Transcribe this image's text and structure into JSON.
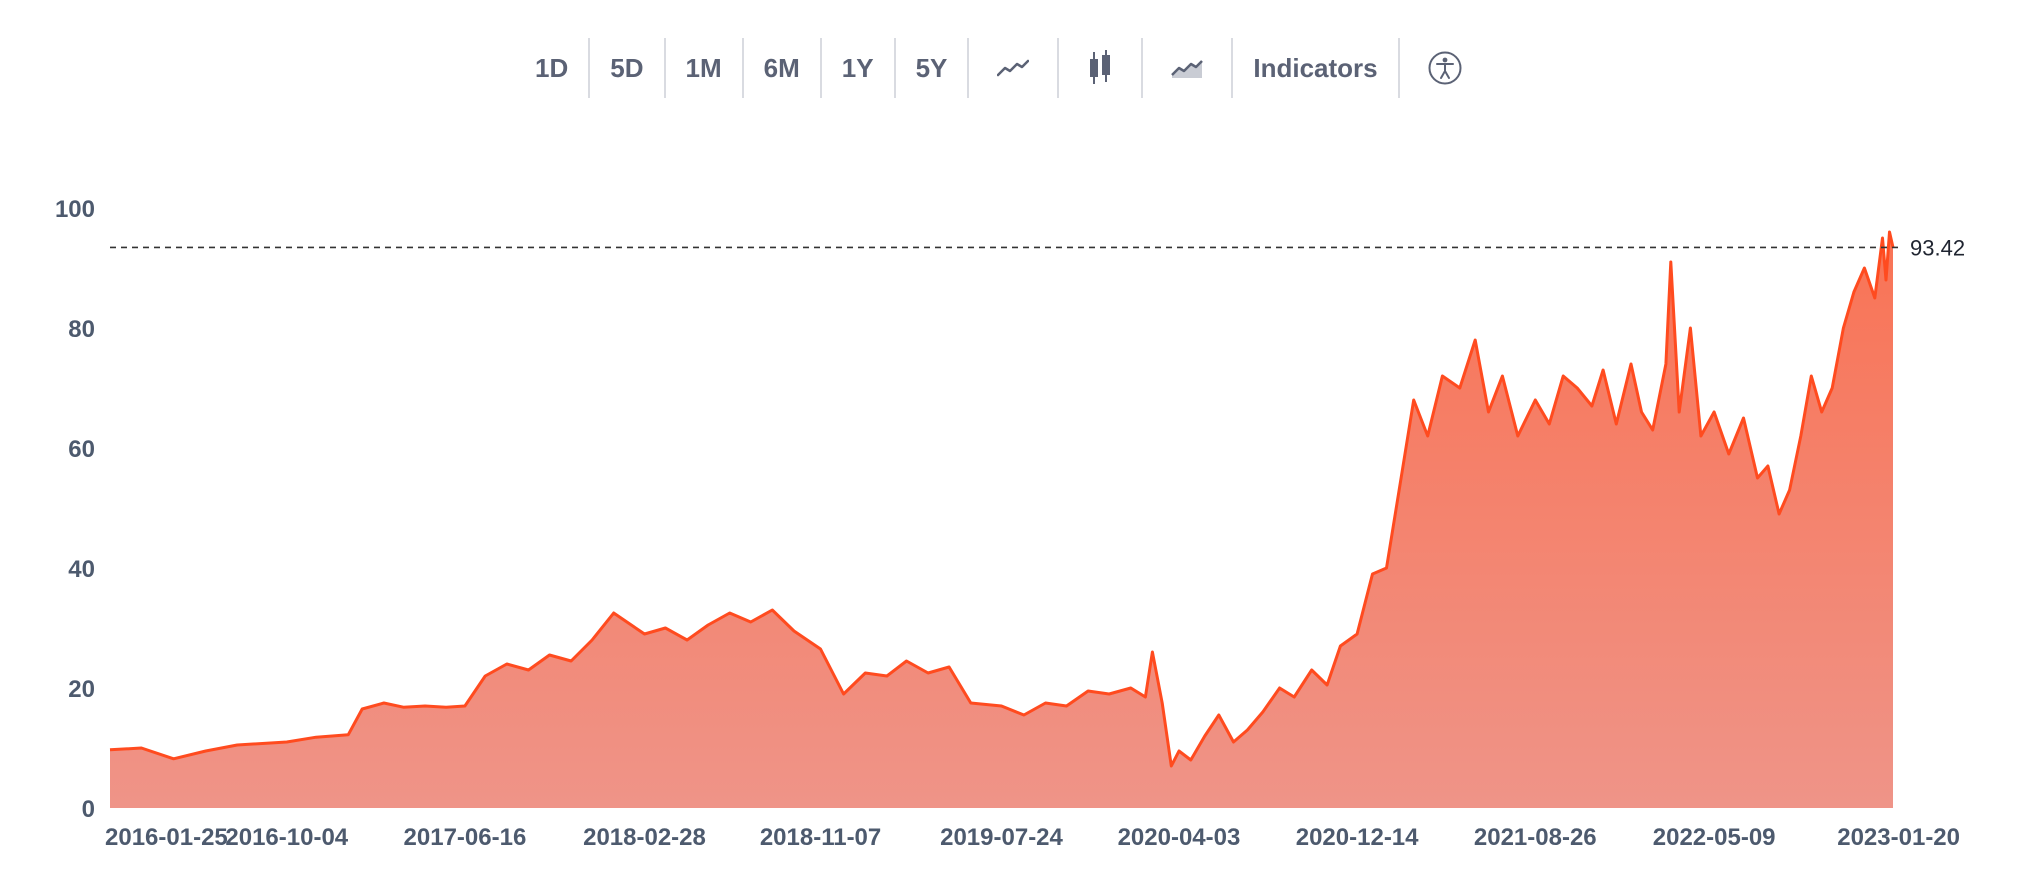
{
  "toolbar": {
    "ranges": [
      "1D",
      "5D",
      "1M",
      "6M",
      "1Y",
      "5Y"
    ],
    "icons": [
      "line-chart-icon",
      "candlestick-chart-icon",
      "area-chart-icon"
    ],
    "indicators_label": "Indicators",
    "accessibility_icon": "accessibility-icon"
  },
  "chart_data": {
    "type": "area",
    "title": "",
    "xlabel": "",
    "ylabel": "",
    "ylim": [
      0,
      100
    ],
    "yticks": [
      0,
      20,
      40,
      60,
      80,
      100
    ],
    "xticks": [
      "2016-01-25",
      "2016-10-04",
      "2017-06-16",
      "2018-02-28",
      "2018-11-07",
      "2019-07-24",
      "2020-04-03",
      "2020-12-14",
      "2021-08-26",
      "2022-05-09",
      "2023-01-20"
    ],
    "last_price": 93.42,
    "last_price_label": "93.42",
    "grid": false,
    "colors": {
      "line": "#ff4b1f",
      "fill_top": "#f97355",
      "fill_bottom": "#ef9488",
      "reference": "#333333"
    },
    "series": [
      {
        "x": [
          "2016-01-25",
          "2016-03-10",
          "2016-04-25",
          "2016-06-10",
          "2016-07-25",
          "2016-09-05",
          "2016-10-04",
          "2016-11-15",
          "2016-12-31",
          "2017-01-20",
          "2017-02-20",
          "2017-03-20",
          "2017-04-20",
          "2017-05-20",
          "2017-06-16",
          "2017-07-15",
          "2017-08-15",
          "2017-09-15",
          "2017-10-15",
          "2017-11-15",
          "2017-12-15",
          "2018-01-15",
          "2018-02-28",
          "2018-03-30",
          "2018-04-30",
          "2018-05-30",
          "2018-06-30",
          "2018-07-30",
          "2018-08-30",
          "2018-09-30",
          "2018-11-07",
          "2018-12-10",
          "2019-01-10",
          "2019-02-10",
          "2019-03-10",
          "2019-04-10",
          "2019-05-10",
          "2019-06-10",
          "2019-07-24",
          "2019-08-25",
          "2019-09-25",
          "2019-10-25",
          "2019-11-25",
          "2019-12-25",
          "2020-01-25",
          "2020-02-15",
          "2020-02-25",
          "2020-03-10",
          "2020-03-23",
          "2020-04-03",
          "2020-04-20",
          "2020-05-10",
          "2020-05-30",
          "2020-06-20",
          "2020-07-10",
          "2020-08-01",
          "2020-08-25",
          "2020-09-15",
          "2020-10-10",
          "2020-11-01",
          "2020-11-20",
          "2020-12-14",
          "2021-01-05",
          "2021-01-25",
          "2021-02-15",
          "2021-03-05",
          "2021-03-25",
          "2021-04-15",
          "2021-05-10",
          "2021-06-01",
          "2021-06-20",
          "2021-07-10",
          "2021-08-01",
          "2021-08-26",
          "2021-09-15",
          "2021-10-05",
          "2021-10-25",
          "2021-11-15",
          "2021-12-01",
          "2021-12-20",
          "2022-01-10",
          "2022-01-25",
          "2022-02-10",
          "2022-03-01",
          "2022-03-08",
          "2022-03-20",
          "2022-04-05",
          "2022-04-20",
          "2022-05-09",
          "2022-05-30",
          "2022-06-20",
          "2022-07-10",
          "2022-07-25",
          "2022-08-10",
          "2022-08-25",
          "2022-09-10",
          "2022-09-25",
          "2022-10-10",
          "2022-10-25",
          "2022-11-10",
          "2022-11-25",
          "2022-12-10",
          "2022-12-25",
          "2023-01-05",
          "2023-01-10",
          "2023-01-15",
          "2023-01-20"
        ],
        "y": [
          9.7,
          10.0,
          8.2,
          9.5,
          10.5,
          10.8,
          11.0,
          11.8,
          12.2,
          16.5,
          17.5,
          16.8,
          17.0,
          16.8,
          17.0,
          22.0,
          24.0,
          23.0,
          25.5,
          24.5,
          28.0,
          32.5,
          29.0,
          30.0,
          28.0,
          30.5,
          32.5,
          31.0,
          33.0,
          29.5,
          26.5,
          19.0,
          22.5,
          22.0,
          24.5,
          22.5,
          23.5,
          17.5,
          17.0,
          15.5,
          17.5,
          17.0,
          19.5,
          19.0,
          20.0,
          18.5,
          26.0,
          17.5,
          7.0,
          9.5,
          8.0,
          12.0,
          15.5,
          11.0,
          13.0,
          16.0,
          20.0,
          18.5,
          23.0,
          20.5,
          27.0,
          29.0,
          39.0,
          40.0,
          55.0,
          68.0,
          62.0,
          72.0,
          70.0,
          78.0,
          66.0,
          72.0,
          62.0,
          68.0,
          64.0,
          72.0,
          70.0,
          67.0,
          73.0,
          64.0,
          74.0,
          66.0,
          63.0,
          74.0,
          91.0,
          66.0,
          80.0,
          62.0,
          66.0,
          59.0,
          65.0,
          55.0,
          57.0,
          49.0,
          53.0,
          62.0,
          72.0,
          66.0,
          70.0,
          80.0,
          86.0,
          90.0,
          85.0,
          95.0,
          88.0,
          96.0,
          93.42
        ]
      }
    ]
  }
}
